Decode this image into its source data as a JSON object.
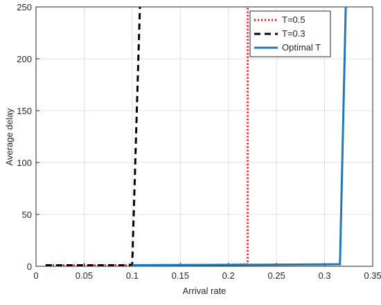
{
  "chart_data": {
    "type": "line",
    "xlabel": "Arrival rate",
    "ylabel": "Average delay",
    "xlim": [
      0,
      0.35
    ],
    "xticks": [
      0,
      0.05,
      0.1,
      0.15,
      0.2,
      0.25,
      0.3,
      0.35
    ],
    "ylim": [
      0,
      250
    ],
    "yticks": [
      0,
      50,
      100,
      150,
      200,
      250
    ],
    "grid": true,
    "legend": "upper right",
    "series": [
      {
        "name": "T=0.5",
        "color": "#e3191c",
        "dash": "dotted",
        "x": [
          0.01,
          0.1,
          0.2,
          0.22,
          0.22
        ],
        "values": [
          1,
          1.1,
          1.5,
          2,
          250
        ]
      },
      {
        "name": "T=0.3",
        "color": "#000000",
        "dash": "dashed",
        "x": [
          0.01,
          0.09,
          0.1,
          0.108
        ],
        "values": [
          1,
          1,
          1.5,
          250
        ]
      },
      {
        "name": "Optimal T",
        "color": "#1f77b4",
        "dash": "solid",
        "x": [
          0.1,
          0.2,
          0.3,
          0.316,
          0.322
        ],
        "values": [
          1,
          1.3,
          1.8,
          2,
          250
        ]
      }
    ]
  }
}
